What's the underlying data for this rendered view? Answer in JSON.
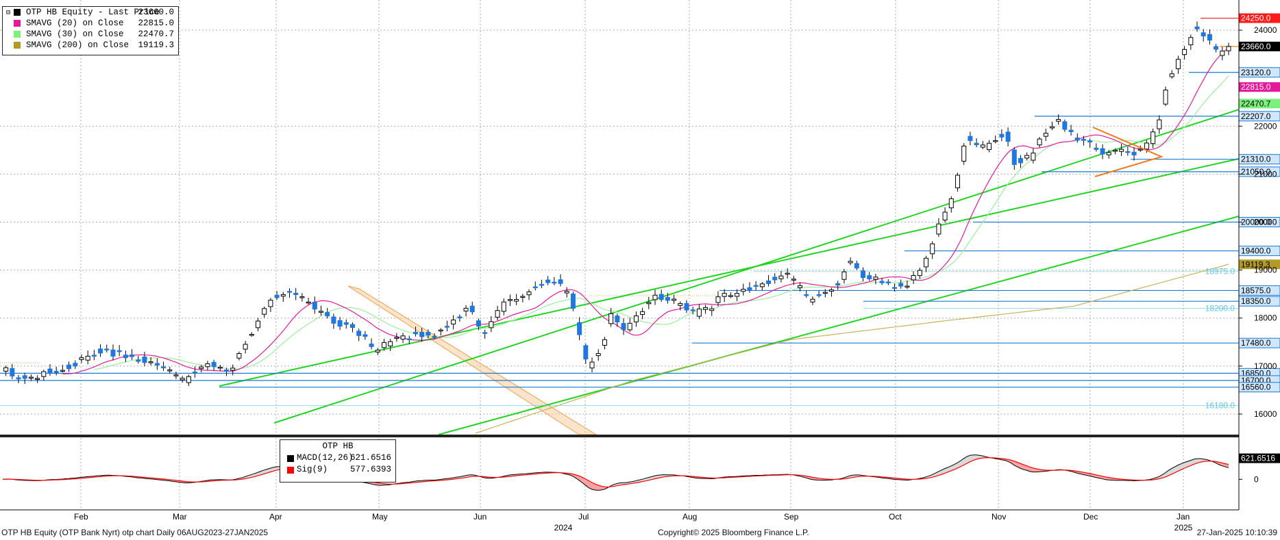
{
  "chart_data": [
    {
      "type": "candlestick",
      "legend": [
        {
          "name": "OTP HB Equity - Last Price",
          "value": "23660.0",
          "color": "#000000"
        },
        {
          "name": "SMAVG (20)  on Close",
          "value": "22815.0",
          "color": "#e6199b"
        },
        {
          "name": "SMAVG (30)  on Close",
          "value": "22470.7",
          "color": "#7cf07c"
        },
        {
          "name": "SMAVG (200)  on Close",
          "value": "19119.3",
          "color": "#b39a27"
        }
      ],
      "y_ticks": [
        "24000",
        "22000",
        "21000",
        "20000",
        "19000",
        "18000",
        "17000",
        "16000"
      ],
      "ylim": [
        15600,
        24600
      ],
      "x_ticks": [
        "Feb",
        "Mar",
        "Apr",
        "May",
        "Jun",
        "Jul",
        "Aug",
        "Sep",
        "Oct",
        "Nov",
        "Dec",
        "Jan"
      ],
      "x_years": [
        "2024",
        "2025"
      ],
      "levels": [
        {
          "value": 24250,
          "label": "24250.0",
          "style": "red"
        },
        {
          "value": 23660,
          "label": "23660.0",
          "style": "black"
        },
        {
          "value": 23120,
          "label": "23120.0",
          "style": "blue"
        },
        {
          "value": 22815,
          "label": "22815.0",
          "style": "magenta"
        },
        {
          "value": 22470.7,
          "label": "22470.7",
          "style": "green"
        },
        {
          "value": 22207,
          "label": "22207.0",
          "style": "blue"
        },
        {
          "value": 21310,
          "label": "21310.0",
          "style": "blue"
        },
        {
          "value": 21050,
          "label": "21050.0",
          "style": "blue"
        },
        {
          "value": 20000,
          "label": "20000.0",
          "style": "blue"
        },
        {
          "value": 19400,
          "label": "19400.0",
          "style": "blue"
        },
        {
          "value": 19119.3,
          "label": "19119.3",
          "style": "olive"
        },
        {
          "value": 18975,
          "label": "18975.0",
          "style": "text"
        },
        {
          "value": 18575,
          "label": "18575.0",
          "style": "blue"
        },
        {
          "value": 18350,
          "label": "18350.0",
          "style": "blue"
        },
        {
          "value": 18200,
          "label": "18200.0",
          "style": "text"
        },
        {
          "value": 17480,
          "label": "17480.0",
          "style": "blue"
        },
        {
          "value": 16850,
          "label": "16850.0",
          "style": "blue"
        },
        {
          "value": 16700,
          "label": "16700.0",
          "style": "blue"
        },
        {
          "value": 16560,
          "label": "16560.0",
          "style": "blue"
        },
        {
          "value": 16180,
          "label": "16180.0",
          "style": "text"
        }
      ],
      "price_anchors": [
        [
          0,
          16950
        ],
        [
          8,
          16700
        ],
        [
          15,
          16900
        ],
        [
          22,
          17000
        ],
        [
          30,
          17300
        ],
        [
          38,
          17250
        ],
        [
          45,
          17100
        ],
        [
          50,
          17000
        ],
        [
          58,
          16700
        ],
        [
          65,
          17100
        ],
        [
          72,
          16900
        ],
        [
          78,
          17600
        ],
        [
          86,
          18450
        ],
        [
          92,
          18550
        ],
        [
          98,
          18300
        ],
        [
          105,
          17950
        ],
        [
          112,
          17750
        ],
        [
          118,
          17350
        ],
        [
          124,
          17550
        ],
        [
          130,
          17650
        ],
        [
          137,
          17650
        ],
        [
          143,
          17900
        ],
        [
          148,
          18250
        ],
        [
          152,
          17650
        ],
        [
          156,
          18050
        ],
        [
          160,
          18350
        ],
        [
          165,
          18500
        ],
        [
          170,
          18700
        ],
        [
          175,
          18800
        ],
        [
          180,
          18450
        ],
        [
          183,
          17650
        ],
        [
          186,
          16950
        ],
        [
          190,
          17400
        ],
        [
          193,
          18050
        ],
        [
          198,
          17750
        ],
        [
          202,
          18100
        ],
        [
          207,
          18450
        ],
        [
          212,
          18400
        ],
        [
          216,
          18250
        ],
        [
          220,
          18100
        ],
        [
          224,
          18200
        ],
        [
          228,
          18450
        ],
        [
          234,
          18550
        ],
        [
          238,
          18650
        ],
        [
          244,
          18800
        ],
        [
          248,
          18950
        ],
        [
          252,
          18700
        ],
        [
          256,
          18350
        ],
        [
          260,
          18500
        ],
        [
          265,
          18750
        ],
        [
          269,
          19250
        ],
        [
          273,
          18850
        ],
        [
          278,
          18800
        ],
        [
          282,
          18700
        ],
        [
          286,
          18650
        ],
        [
          290,
          18950
        ],
        [
          294,
          19300
        ],
        [
          297,
          19950
        ],
        [
          300,
          20350
        ],
        [
          303,
          20950
        ],
        [
          306,
          21800
        ],
        [
          310,
          21500
        ],
        [
          314,
          21650
        ],
        [
          318,
          21900
        ],
        [
          321,
          21250
        ],
        [
          326,
          21350
        ],
        [
          330,
          21800
        ],
        [
          335,
          22100
        ],
        [
          340,
          21800
        ],
        [
          345,
          21600
        ],
        [
          350,
          21450
        ],
        [
          355,
          21500
        ],
        [
          360,
          21450
        ],
        [
          364,
          21700
        ],
        [
          367,
          22100
        ],
        [
          370,
          23000
        ],
        [
          374,
          23500
        ],
        [
          378,
          24000
        ],
        [
          382,
          23900
        ],
        [
          386,
          23500
        ],
        [
          389,
          23660
        ]
      ],
      "sma200_anchors": [
        [
          150,
          15600
        ],
        [
          200,
          16700
        ],
        [
          250,
          17550
        ],
        [
          300,
          17950
        ],
        [
          340,
          18250
        ],
        [
          389,
          19120
        ]
      ]
    },
    {
      "type": "line",
      "title": "OTP HB",
      "legend": [
        {
          "name": "MACD(12,26)",
          "value": "621.6516",
          "color": "#000000"
        },
        {
          "name": "Sig(9)",
          "value": "577.6393",
          "color": "#ff0000"
        }
      ],
      "y_ticks": [
        "0"
      ],
      "level_label": "621.6516"
    }
  ],
  "footer": {
    "left": "OTP HB Equity (OTP Bank Nyrt) otp chart  Daily 06AUG2023-27JAN2025",
    "center": "Copyright© 2025 Bloomberg Finance L.P.",
    "right": "27-Jan-2025 10:10:39"
  }
}
